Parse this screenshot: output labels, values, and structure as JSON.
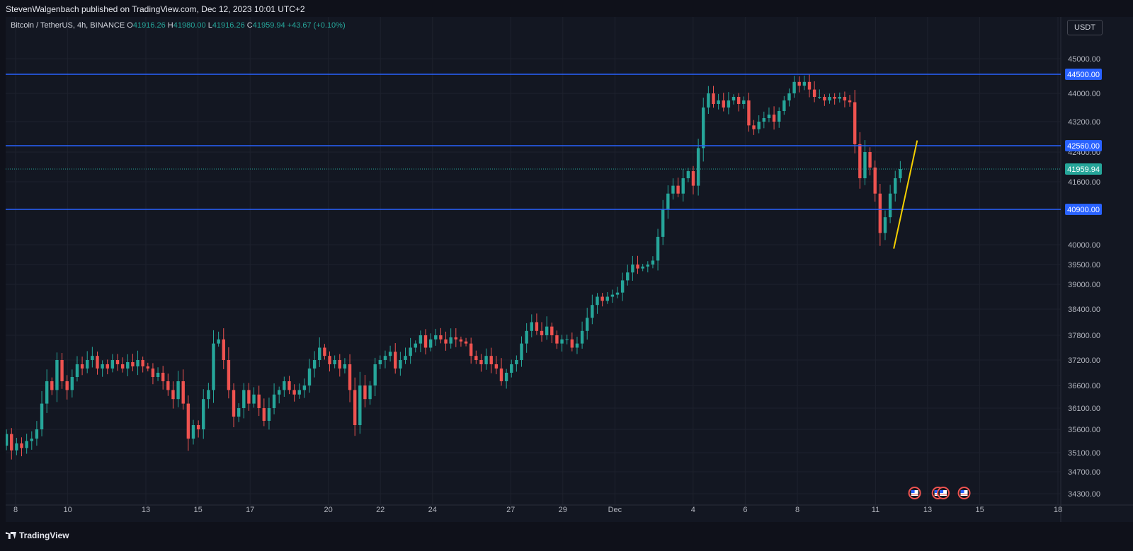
{
  "header": {
    "publisher_line": "StevenWalgenbach published on TradingView.com, Dec 12, 2023 10:01 UTC+2"
  },
  "legend": {
    "symbol": "Bitcoin / TetherUS, 4h, BINANCE",
    "o_label": "O",
    "o_value": "41916.26",
    "h_label": "H",
    "h_value": "41980.00",
    "l_label": "L",
    "l_value": "41916.26",
    "c_label": "C",
    "c_value": "41959.94",
    "change": "+43.67 (+0.10%)"
  },
  "currency_button": "USDT",
  "footer": {
    "brand": "TradingView"
  },
  "colors": {
    "background": "#131722",
    "up": "#26a69a",
    "down": "#ef5350",
    "level_line": "#2962ff",
    "trendline": "#f5d000",
    "grid": "#1e222d",
    "axis_text": "#b2b5be"
  },
  "icons": {
    "events": "us-flag-economic-event-icon"
  },
  "chart_data": {
    "type": "candlestick",
    "symbol": "BTCUSDT",
    "timeframe": "4h",
    "ylim": [
      33900,
      45800
    ],
    "y_ticks": [
      "45000.00",
      "44000.00",
      "43200.00",
      "42400.00",
      "41600.00",
      "40000.00",
      "39500.00",
      "39000.00",
      "38400.00",
      "37800.00",
      "37200.00",
      "36600.00",
      "36100.00",
      "35600.00",
      "35100.00",
      "34700.00",
      "34300.00"
    ],
    "x_ticks": [
      {
        "label": "8",
        "day": 8
      },
      {
        "label": "10",
        "day": 10
      },
      {
        "label": "13",
        "day": 13
      },
      {
        "label": "15",
        "day": 15
      },
      {
        "label": "17",
        "day": 17
      },
      {
        "label": "20",
        "day": 20
      },
      {
        "label": "22",
        "day": 22
      },
      {
        "label": "24",
        "day": 24
      },
      {
        "label": "27",
        "day": 27
      },
      {
        "label": "29",
        "day": 29
      },
      {
        "label": "Dec",
        "day": 31
      },
      {
        "label": "4",
        "day": 34
      },
      {
        "label": "6",
        "day": 36
      },
      {
        "label": "8",
        "day": 38
      },
      {
        "label": "11",
        "day": 41
      },
      {
        "label": "13",
        "day": 43
      },
      {
        "label": "15",
        "day": 45
      },
      {
        "label": "18",
        "day": 48
      }
    ],
    "price_levels": [
      {
        "price": 44500,
        "label": "44500.00"
      },
      {
        "price": 42560,
        "label": "42560.00"
      },
      {
        "price": 40900,
        "label": "40900.00"
      }
    ],
    "last_price": {
      "price": 41959.94,
      "label": "41959.94"
    },
    "trendline": {
      "from": [
        41.7,
        39900
      ],
      "to": [
        42.6,
        42700
      ]
    },
    "events_days": [
      42.5,
      43.4,
      43.6,
      44.4
    ],
    "series_close": [
      35500,
      35150,
      35300,
      35200,
      35350,
      35400,
      35600,
      36200,
      36700,
      36500,
      37200,
      36700,
      36500,
      36800,
      37100,
      37000,
      37200,
      37300,
      37000,
      37100,
      37000,
      37200,
      37100,
      37000,
      37150,
      37050,
      37200,
      37050,
      37000,
      36800,
      36900,
      36700,
      36500,
      36300,
      36700,
      36200,
      35400,
      35700,
      35600,
      36300,
      36500,
      37600,
      37700,
      37200,
      36500,
      35900,
      36100,
      36500,
      36200,
      36400,
      36100,
      35800,
      36100,
      36400,
      36500,
      36700,
      36500,
      36400,
      36500,
      36600,
      37000,
      37200,
      37500,
      37300,
      37100,
      37200,
      37000,
      37100,
      36500,
      35700,
      36600,
      36300,
      36600,
      37100,
      37200,
      37300,
      37400,
      37000,
      37200,
      37300,
      37500,
      37600,
      37800,
      37500,
      37700,
      37800,
      37700,
      37600,
      37750,
      37700,
      37650,
      37600,
      37300,
      37200,
      37100,
      37300,
      37100,
      37000,
      36700,
      36900,
      37100,
      37200,
      37600,
      37900,
      38100,
      37900,
      37800,
      38000,
      37800,
      37600,
      37700,
      37700,
      37500,
      37600,
      37900,
      38200,
      38500,
      38700,
      38600,
      38700,
      38750,
      38800,
      39100,
      39300,
      39500,
      39400,
      39450,
      39500,
      39600,
      40200,
      40900,
      41300,
      41500,
      41300,
      41700,
      41900,
      41500,
      42500,
      43600,
      44000,
      43700,
      43800,
      43600,
      43800,
      43900,
      43700,
      43800,
      43100,
      43000,
      43200,
      43300,
      43400,
      43200,
      43500,
      43800,
      44000,
      44300,
      44200,
      44300,
      44100,
      43900,
      43900,
      43800,
      43900,
      43850,
      43900,
      43800,
      43750,
      42600,
      41700,
      42400,
      42000,
      41300,
      40300,
      40700,
      41300,
      41700,
      41960
    ]
  }
}
